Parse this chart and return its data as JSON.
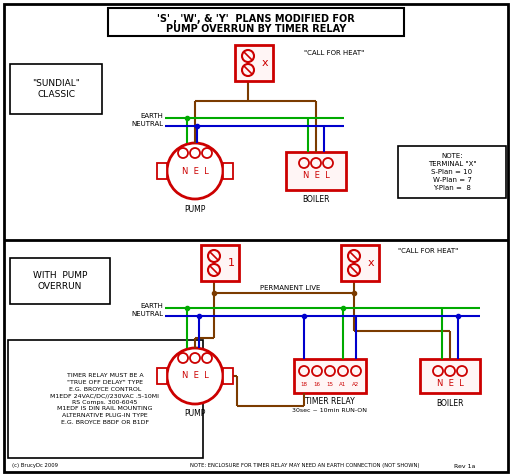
{
  "title_line1": "'S' , 'W', & 'Y'  PLANS MODIFIED FOR",
  "title_line2": "PUMP OVERRUN BY TIMER RELAY",
  "bg_color": "#ffffff",
  "red": "#cc0000",
  "wire_green": "#00aa00",
  "wire_blue": "#0000cc",
  "wire_brown": "#7B3B00",
  "black": "#000000",
  "note_text": "NOTE:\nTERMINAL \"X\"\nS-Plan = 10\nW-Plan = 7\nY-Plan =  8",
  "timer_note": "NOTE: ENCLOSURE FOR TIMER RELAY MAY NEED AN EARTH CONNECTION (NOT SHOWN)",
  "bottom_note_text": "TIMER RELAY MUST BE A\n\"TRUE OFF DELAY\" TYPE\nE.G. BROYCE CONTROL\nM1EDF 24VAC/DC//230VAC .5-10MI\nRS Comps. 300-6045\nM1EDF IS DIN RAIL MOUNTING\nALTERNATIVE PLUG-IN TYPE\nE.G. BROYCE B8DF OR B1DF",
  "sundial_label": "\"SUNDIAL\"\nCLASSIC",
  "pump_overrun_label": "WITH  PUMP\nOVERRUN",
  "pump_label": "PUMP",
  "boiler_label": "BOILER",
  "timer_label": "TIMER RELAY",
  "timer_label2": "30sec ~ 10min RUN-ON",
  "permanent_live": "PERMANENT LIVE",
  "call_for_heat_top": "\"CALL FOR HEAT\"",
  "call_for_heat_bot": "\"CALL FOR HEAT\"",
  "earth_label": "EARTH",
  "neutral_label": "NEUTRAL",
  "rev_label": "Rev 1a",
  "copyright": "(c) BrucyDc 2009"
}
